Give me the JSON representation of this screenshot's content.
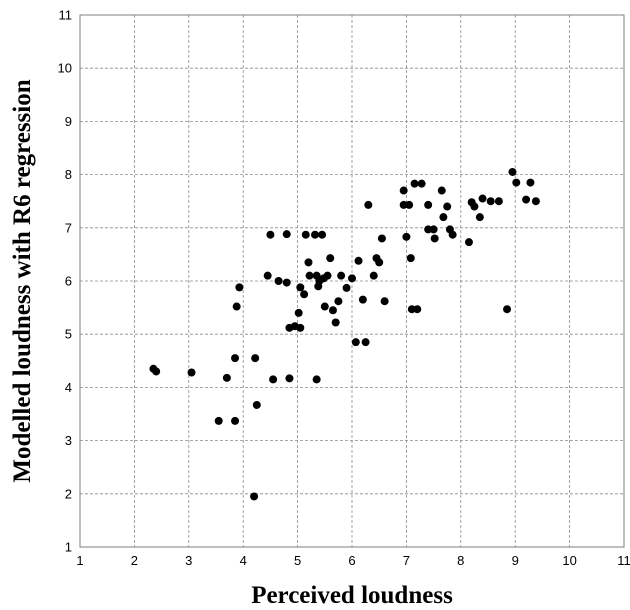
{
  "chart_data": {
    "type": "scatter",
    "title": "",
    "xlabel": "Perceived loudness",
    "ylabel": "Modelled loudness with R6 regression",
    "xlim": [
      1,
      11
    ],
    "ylim": [
      1,
      11
    ],
    "xticks": [
      "1",
      "2",
      "3",
      "4",
      "5",
      "6",
      "7",
      "8",
      "9",
      "10",
      "11"
    ],
    "yticks": [
      "1",
      "2",
      "3",
      "4",
      "5",
      "6",
      "7",
      "8",
      "9",
      "10",
      "11"
    ],
    "grid": true,
    "marker_color": "#000000",
    "series": [
      {
        "points": [
          [
            2.35,
            4.35
          ],
          [
            2.4,
            4.3
          ],
          [
            3.05,
            4.28
          ],
          [
            3.55,
            3.37
          ],
          [
            3.7,
            4.18
          ],
          [
            3.85,
            3.37
          ],
          [
            3.85,
            4.55
          ],
          [
            3.88,
            5.52
          ],
          [
            3.93,
            5.88
          ],
          [
            4.2,
            1.95
          ],
          [
            4.22,
            4.55
          ],
          [
            4.25,
            3.67
          ],
          [
            4.45,
            6.1
          ],
          [
            4.5,
            6.87
          ],
          [
            4.55,
            4.15
          ],
          [
            4.65,
            6.0
          ],
          [
            4.8,
            6.88
          ],
          [
            4.8,
            5.97
          ],
          [
            4.85,
            4.17
          ],
          [
            4.85,
            5.12
          ],
          [
            4.95,
            5.15
          ],
          [
            5.02,
            5.4
          ],
          [
            5.05,
            5.12
          ],
          [
            5.05,
            5.88
          ],
          [
            5.12,
            5.75
          ],
          [
            5.15,
            6.87
          ],
          [
            5.2,
            6.35
          ],
          [
            5.22,
            6.1
          ],
          [
            5.32,
            6.87
          ],
          [
            5.35,
            6.1
          ],
          [
            5.35,
            4.15
          ],
          [
            5.38,
            5.9
          ],
          [
            5.4,
            6.0
          ],
          [
            5.45,
            6.87
          ],
          [
            5.48,
            6.05
          ],
          [
            5.5,
            5.52
          ],
          [
            5.55,
            6.1
          ],
          [
            5.6,
            6.43
          ],
          [
            5.65,
            5.45
          ],
          [
            5.7,
            5.22
          ],
          [
            5.75,
            5.62
          ],
          [
            5.8,
            6.1
          ],
          [
            5.9,
            5.87
          ],
          [
            6.0,
            6.05
          ],
          [
            6.07,
            4.85
          ],
          [
            6.12,
            6.38
          ],
          [
            6.2,
            5.65
          ],
          [
            6.25,
            4.85
          ],
          [
            6.3,
            7.43
          ],
          [
            6.4,
            6.1
          ],
          [
            6.45,
            6.43
          ],
          [
            6.5,
            6.35
          ],
          [
            6.55,
            6.8
          ],
          [
            6.6,
            5.62
          ],
          [
            6.95,
            7.7
          ],
          [
            6.95,
            7.43
          ],
          [
            7.0,
            6.83
          ],
          [
            7.05,
            7.43
          ],
          [
            7.08,
            6.43
          ],
          [
            7.1,
            5.47
          ],
          [
            7.15,
            7.83
          ],
          [
            7.2,
            5.47
          ],
          [
            7.28,
            7.83
          ],
          [
            7.4,
            7.43
          ],
          [
            7.4,
            6.97
          ],
          [
            7.5,
            6.97
          ],
          [
            7.52,
            6.8
          ],
          [
            7.65,
            7.7
          ],
          [
            7.68,
            7.2
          ],
          [
            7.75,
            7.4
          ],
          [
            7.8,
            6.97
          ],
          [
            7.85,
            6.87
          ],
          [
            8.15,
            6.73
          ],
          [
            8.2,
            7.48
          ],
          [
            8.25,
            7.4
          ],
          [
            8.35,
            7.2
          ],
          [
            8.4,
            7.55
          ],
          [
            8.55,
            7.5
          ],
          [
            8.7,
            7.5
          ],
          [
            8.85,
            5.47
          ],
          [
            8.95,
            8.05
          ],
          [
            9.02,
            7.85
          ],
          [
            9.2,
            7.53
          ],
          [
            9.28,
            7.85
          ],
          [
            9.38,
            7.5
          ]
        ]
      }
    ]
  }
}
